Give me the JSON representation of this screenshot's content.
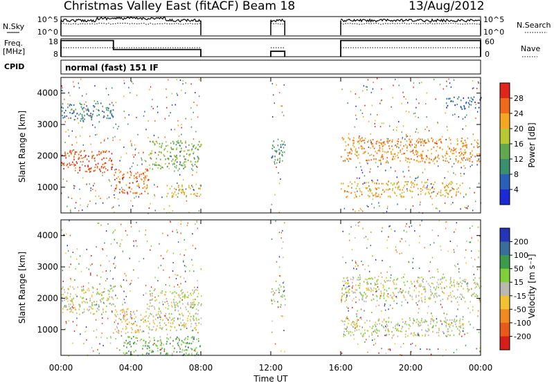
{
  "header": {
    "title": "Christmas Valley East (fitACF)",
    "beam": "Beam 18",
    "date": "13/Aug/2012"
  },
  "params": {
    "nsky_label": "N.Sky",
    "nsky_ticks": [
      "10^5",
      "10^0"
    ],
    "nsearch_label": "N.Search",
    "nsearch_ticks": [
      "10^5",
      "10^0"
    ],
    "freq_label": "Freq.",
    "freq_unit": "[MHz]",
    "freq_ticks": [
      "18",
      "8"
    ],
    "nave_label": "Nave",
    "nave_ticks": [
      "60",
      "0"
    ],
    "cpid_label": "CPID",
    "cpid_value": "normal (fast) 151 IF"
  },
  "x_axis": {
    "label": "Time UT",
    "tick_labels": [
      "00:00",
      "04:00",
      "08:00",
      "12:00",
      "16:00",
      "20:00",
      "00:00"
    ],
    "tick_hours": [
      0,
      4,
      8,
      12,
      16,
      20,
      24
    ]
  },
  "colorbars": {
    "power": {
      "label": "Power [dB]",
      "ticks": [
        "4",
        "8",
        "12",
        "16",
        "20",
        "24",
        "28"
      ],
      "colors": [
        "#1a2bd6",
        "#2a5fb8",
        "#3b8e6e",
        "#61a84e",
        "#b8c833",
        "#f5a623",
        "#f06a1a",
        "#e0251a"
      ]
    },
    "velocity": {
      "label": "Velocity [m s⁻¹]",
      "ticks": [
        "200",
        "100",
        "50",
        "15",
        "-15",
        "-50",
        "-100",
        "-200"
      ],
      "colors": [
        "#2535b8",
        "#3a6e9a",
        "#3d9a4a",
        "#7fcf3a",
        "#b9b9b0",
        "#f2c233",
        "#f08a20",
        "#e85a1a",
        "#d81e1a"
      ]
    }
  },
  "chart_data": [
    {
      "type": "line",
      "title": "N.Sky / N.Search",
      "x_label": "Time UT (hours)",
      "y_scale": "log",
      "ylim": [
        1,
        100000
      ],
      "segments": [
        [
          0,
          8
        ],
        [
          12,
          12.8
        ],
        [
          16,
          24
        ]
      ],
      "series": [
        {
          "name": "N.Sky",
          "x": [
            0,
            2,
            4,
            6,
            8
          ],
          "values": [
            15000,
            25000,
            30000,
            20000,
            15000
          ]
        },
        {
          "name": "N.Search",
          "x": [
            0,
            4,
            8
          ],
          "values": [
            3000,
            4000,
            3000
          ]
        }
      ]
    },
    {
      "type": "line",
      "title": "Freq. / Nave",
      "x_label": "Time UT (hours)",
      "ylim": [
        8,
        18
      ],
      "series": [
        {
          "name": "Freq. [MHz]",
          "x": [
            0,
            3,
            3,
            8,
            12,
            12.8,
            16,
            24
          ],
          "values": [
            17,
            17,
            12,
            12,
            11,
            11,
            17,
            17
          ]
        },
        {
          "name": "Nave",
          "x": [
            0,
            8,
            16,
            24
          ],
          "values": [
            30,
            30,
            30,
            30
          ]
        }
      ]
    },
    {
      "type": "heatmap",
      "title": "Power",
      "x_label": "Time UT",
      "y_label": "Slant Range [km]",
      "ylim": [
        180,
        4500
      ],
      "y_ticks": [
        1000,
        2000,
        3000,
        4000
      ],
      "z_label": "Power [dB]",
      "z_range": [
        0,
        30
      ],
      "regions": [
        {
          "t0": 0,
          "t1": 3,
          "r0": 1500,
          "r1": 2200,
          "level": 26
        },
        {
          "t0": 0,
          "t1": 3,
          "r0": 3100,
          "r1": 3700,
          "level": 8
        },
        {
          "t0": 3,
          "t1": 5,
          "r0": 800,
          "r1": 1600,
          "level": 24
        },
        {
          "t0": 5,
          "t1": 8,
          "r0": 1600,
          "r1": 2500,
          "level": 14
        },
        {
          "t0": 6,
          "t1": 8,
          "r0": 700,
          "r1": 1100,
          "level": 18
        },
        {
          "t0": 12,
          "t1": 12.8,
          "r0": 1800,
          "r1": 2500,
          "level": 10
        },
        {
          "t0": 16,
          "t1": 24,
          "r0": 1800,
          "r1": 2600,
          "level": 22
        },
        {
          "t0": 16,
          "t1": 23,
          "r0": 700,
          "r1": 1200,
          "level": 20
        },
        {
          "t0": 22,
          "t1": 24,
          "r0": 3500,
          "r1": 3900,
          "level": 6
        }
      ]
    },
    {
      "type": "heatmap",
      "title": "Velocity",
      "x_label": "Time UT",
      "y_label": "Slant Range [km]",
      "ylim": [
        180,
        4500
      ],
      "y_ticks": [
        1000,
        2000,
        3000,
        4000
      ],
      "z_label": "Velocity [m s^-1]",
      "z_range": [
        -200,
        200
      ],
      "regions": [
        {
          "t0": 0,
          "t1": 3,
          "r0": 1500,
          "r1": 2400,
          "level": 0
        },
        {
          "t0": 3,
          "t1": 5,
          "r0": 900,
          "r1": 1700,
          "level": -30
        },
        {
          "t0": 5,
          "t1": 8,
          "r0": 1000,
          "r1": 2300,
          "level": 0
        },
        {
          "t0": 3.5,
          "t1": 8,
          "r0": 200,
          "r1": 800,
          "level": 60
        },
        {
          "t0": 12,
          "t1": 12.8,
          "r0": 1800,
          "r1": 2400,
          "level": 30
        },
        {
          "t0": 16,
          "t1": 24,
          "r0": 1900,
          "r1": 2700,
          "level": 0
        },
        {
          "t0": 16,
          "t1": 23,
          "r0": 800,
          "r1": 1400,
          "level": 0
        }
      ]
    }
  ]
}
